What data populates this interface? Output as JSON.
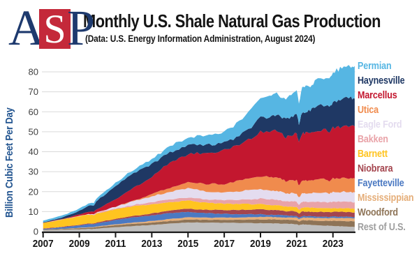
{
  "header": {
    "logo_a": "A",
    "logo_s": "S",
    "logo_p": "P",
    "title": "Monthly U.S. Shale Natural Gas Production",
    "subtitle": "(Data: U.S. Energy Information Administration, August 2024)"
  },
  "colors": {
    "logo_navy": "#1E3A6E",
    "logo_red": "#C4293A",
    "y_axis_title_blue": "#20538F",
    "axis_line": "#1A1A1A",
    "gridline": "#D9D9D9",
    "y_tick_text": "#404040",
    "x_tick_text": "#151515"
  },
  "chart_data": {
    "type": "area",
    "stacked": true,
    "title": "Monthly U.S. Shale Natural Gas Production",
    "subtitle": "(Data: U.S. Energy Information Administration, August 2024)",
    "xlabel": "",
    "ylabel": "Billion Cubic Feet Per Day",
    "units": "Bcf/d",
    "grid": true,
    "legend_position": "right",
    "xlim": [
      2007,
      2024.2
    ],
    "ylim": [
      0,
      80
    ],
    "yticks": [
      0,
      10,
      20,
      30,
      40,
      50,
      60,
      70,
      80
    ],
    "xticks": [
      2007,
      2009,
      2011,
      2013,
      2015,
      2017,
      2019,
      2021,
      2023
    ],
    "x": [
      2007,
      2007.5,
      2008,
      2008.5,
      2009,
      2009.5,
      2009.8,
      2010,
      2010.5,
      2011,
      2011.5,
      2012,
      2012.5,
      2013,
      2013.5,
      2014,
      2014.5,
      2015,
      2015.5,
      2016,
      2016.5,
      2017,
      2017.5,
      2018,
      2018.5,
      2019,
      2019.5,
      2019.8,
      2020.1,
      2020.4,
      2020.7,
      2021,
      2021.12,
      2021.3,
      2021.5,
      2021.75,
      2022,
      2022.5,
      2022.8,
      2023,
      2023.3,
      2023.6,
      2024,
      2024.2
    ],
    "series": [
      {
        "name": "Permian",
        "color": "#56B6E3",
        "values": [
          0.9,
          0.95,
          1.0,
          1.05,
          1.1,
          1.2,
          1.15,
          1.3,
          1.45,
          1.6,
          1.8,
          2.0,
          2.2,
          2.4,
          2.7,
          3.0,
          3.45,
          3.9,
          4.25,
          4.6,
          4.9,
          5.5,
          6.3,
          7.4,
          8.4,
          9.6,
          10.4,
          10.9,
          10.6,
          10.2,
          10.8,
          11.6,
          10.0,
          11.8,
          12.0,
          12.2,
          13.0,
          13.6,
          13.4,
          14.7,
          15.1,
          15.4,
          16.0,
          16.3
        ]
      },
      {
        "name": "Haynesville",
        "color": "#1F3864",
        "values": [
          0.2,
          0.4,
          0.7,
          1.1,
          1.8,
          2.9,
          3.3,
          4.2,
          5.6,
          6.6,
          7.1,
          7.2,
          6.8,
          6.2,
          5.6,
          5.1,
          4.7,
          4.4,
          4.2,
          3.9,
          3.7,
          3.8,
          4.1,
          4.8,
          5.6,
          7.0,
          7.6,
          8.1,
          8.2,
          8.8,
          9.3,
          10.4,
          9.4,
          10.6,
          10.9,
          11.3,
          11.9,
          12.6,
          12.4,
          13.3,
          13.8,
          14.2,
          14.1,
          14.0
        ]
      },
      {
        "name": "Marcellus",
        "color": "#C3172F",
        "values": [
          0.1,
          0.15,
          0.3,
          0.5,
          0.8,
          1.2,
          1.3,
          1.7,
          2.6,
          3.6,
          4.9,
          6.2,
          7.6,
          9.0,
          10.8,
          12.5,
          13.5,
          14.2,
          14.9,
          15.8,
          16.0,
          17.0,
          17.6,
          18.8,
          20.0,
          22.2,
          22.6,
          23.2,
          22.6,
          22.0,
          22.6,
          23.6,
          21.8,
          23.5,
          23.6,
          23.8,
          24.3,
          24.8,
          24.4,
          25.2,
          25.5,
          25.8,
          25.9,
          26.0
        ]
      },
      {
        "name": "Utica",
        "color": "#F08B4D",
        "values": [
          0,
          0,
          0,
          0,
          0,
          0,
          0,
          0.02,
          0.03,
          0.05,
          0.15,
          0.3,
          0.6,
          1.0,
          1.5,
          2.0,
          2.5,
          2.9,
          3.3,
          3.6,
          3.9,
          4.2,
          4.8,
          5.4,
          6.0,
          6.6,
          6.6,
          6.7,
          6.6,
          6.3,
          6.4,
          6.5,
          6.0,
          6.5,
          6.4,
          6.4,
          6.6,
          6.7,
          6.5,
          6.8,
          6.9,
          6.9,
          7.0,
          7.0
        ]
      },
      {
        "name": "Eagle Ford",
        "color": "#E4DCEF",
        "values": [
          0,
          0,
          0,
          0.02,
          0.05,
          0.15,
          0.2,
          0.3,
          0.55,
          0.9,
          1.4,
          1.9,
          2.4,
          2.9,
          3.4,
          3.9,
          4.2,
          4.5,
          4.4,
          4.1,
          4.0,
          3.9,
          4.1,
          4.3,
          4.5,
          4.6,
          4.5,
          4.5,
          4.3,
          4.0,
          4.1,
          4.2,
          3.7,
          4.3,
          4.3,
          4.3,
          4.5,
          4.6,
          4.5,
          4.8,
          4.8,
          4.9,
          4.9,
          4.9
        ]
      },
      {
        "name": "Bakken",
        "color": "#E9A3A8",
        "values": [
          0.05,
          0.07,
          0.1,
          0.12,
          0.15,
          0.2,
          0.22,
          0.25,
          0.32,
          0.4,
          0.5,
          0.65,
          0.8,
          0.95,
          1.1,
          1.3,
          1.45,
          1.6,
          1.6,
          1.6,
          1.7,
          1.8,
          2.0,
          2.3,
          2.55,
          2.8,
          2.85,
          2.9,
          2.8,
          2.4,
          2.6,
          2.8,
          2.4,
          2.8,
          2.9,
          2.9,
          3.0,
          3.1,
          3.0,
          3.2,
          3.2,
          3.3,
          3.3,
          3.3
        ]
      },
      {
        "name": "Barnett",
        "color": "#FFC420",
        "values": [
          2.7,
          3.1,
          3.5,
          3.9,
          4.2,
          4.35,
          4.1,
          4.5,
          4.65,
          4.8,
          4.85,
          4.9,
          4.8,
          4.7,
          4.55,
          4.4,
          4.25,
          4.1,
          3.85,
          3.6,
          3.4,
          3.2,
          3.05,
          2.9,
          2.75,
          2.6,
          2.5,
          2.45,
          2.4,
          2.3,
          2.25,
          2.1,
          1.9,
          2.1,
          2.05,
          2.05,
          2.0,
          1.95,
          1.9,
          1.9,
          1.85,
          1.85,
          1.8,
          1.8
        ]
      },
      {
        "name": "Niobrara",
        "color": "#A4454E",
        "values": [
          0.25,
          0.27,
          0.3,
          0.32,
          0.35,
          0.4,
          0.42,
          0.45,
          0.5,
          0.55,
          0.65,
          0.75,
          0.85,
          0.95,
          1.1,
          1.25,
          1.4,
          1.55,
          1.6,
          1.65,
          1.75,
          1.85,
          2.0,
          2.15,
          2.3,
          2.45,
          2.4,
          2.4,
          2.35,
          2.2,
          2.25,
          2.2,
          2.0,
          2.2,
          2.25,
          2.25,
          2.3,
          2.35,
          2.3,
          2.4,
          2.4,
          2.4,
          2.35,
          2.3
        ]
      },
      {
        "name": "Fayetteville",
        "color": "#4B79C2",
        "values": [
          0.3,
          0.5,
          0.7,
          0.95,
          1.2,
          1.45,
          1.45,
          1.7,
          1.95,
          2.2,
          2.4,
          2.6,
          2.7,
          2.8,
          2.85,
          2.85,
          2.8,
          2.7,
          2.5,
          2.3,
          2.1,
          1.9,
          1.75,
          1.6,
          1.45,
          1.3,
          1.15,
          1.1,
          1.05,
          1.0,
          0.95,
          0.85,
          0.8,
          0.85,
          0.8,
          0.8,
          0.75,
          0.72,
          0.7,
          0.7,
          0.7,
          0.7,
          0.7,
          0.7
        ]
      },
      {
        "name": "Mississippian",
        "color": "#E5AE79",
        "values": [
          0.05,
          0.07,
          0.1,
          0.12,
          0.15,
          0.2,
          0.22,
          0.25,
          0.32,
          0.4,
          0.5,
          0.6,
          0.7,
          0.8,
          0.9,
          1.0,
          1.05,
          1.1,
          1.08,
          1.05,
          1.05,
          1.05,
          1.1,
          1.15,
          1.2,
          1.25,
          1.22,
          1.2,
          1.2,
          1.15,
          1.18,
          1.25,
          1.1,
          1.25,
          1.3,
          1.3,
          1.35,
          1.4,
          1.35,
          1.45,
          1.45,
          1.5,
          1.5,
          1.5
        ]
      },
      {
        "name": "Woodford",
        "color": "#8E7457",
        "values": [
          0.25,
          0.32,
          0.4,
          0.5,
          0.6,
          0.7,
          0.72,
          0.8,
          0.9,
          1.0,
          1.05,
          1.1,
          1.15,
          1.2,
          1.25,
          1.3,
          1.38,
          1.45,
          1.42,
          1.4,
          1.45,
          1.5,
          1.6,
          1.7,
          1.8,
          1.9,
          1.95,
          2.0,
          2.0,
          1.95,
          2.0,
          2.1,
          1.9,
          2.1,
          2.15,
          2.2,
          2.3,
          2.4,
          2.35,
          2.6,
          2.65,
          2.7,
          2.8,
          2.8
        ]
      },
      {
        "name": "Rest of U.S.",
        "color": "#BFBFBF",
        "legend_color": "#9E9E9E",
        "values": [
          0.7,
          0.8,
          0.9,
          1.0,
          1.1,
          1.3,
          1.3,
          1.5,
          1.85,
          2.2,
          2.5,
          2.8,
          3.05,
          3.3,
          3.65,
          4.0,
          4.3,
          4.6,
          4.55,
          4.5,
          4.45,
          4.4,
          4.35,
          4.3,
          4.25,
          4.2,
          4.1,
          4.05,
          4.0,
          3.9,
          3.9,
          3.6,
          3.2,
          3.6,
          3.5,
          3.4,
          3.2,
          3.0,
          2.95,
          2.8,
          2.7,
          2.6,
          2.4,
          2.3
        ]
      }
    ]
  }
}
